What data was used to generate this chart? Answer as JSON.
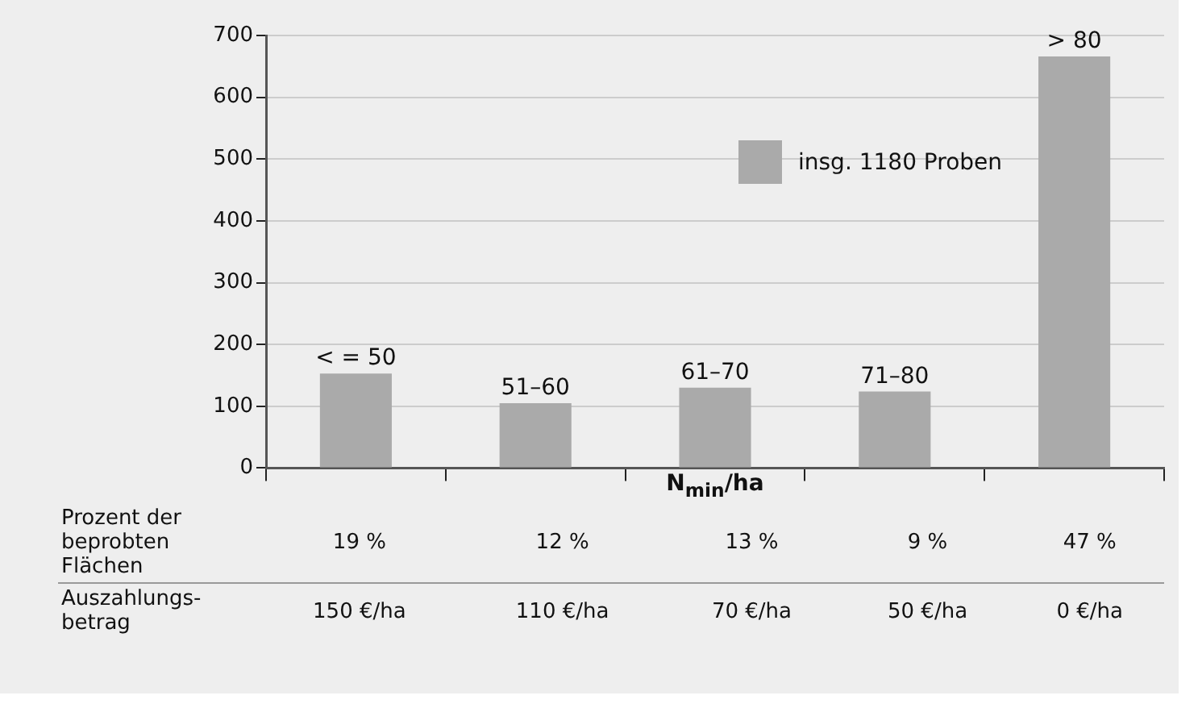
{
  "chart_data": {
    "type": "bar",
    "xlabel": "N$_{min}$/ha",
    "categories": [
      "< = 50",
      "51–60",
      "61–70",
      "71–80",
      "> 80"
    ],
    "series": [
      {
        "name": "insg. 1180 Proben",
        "color": "#aaaaaa",
        "values": [
          153,
          105,
          130,
          124,
          666
        ]
      }
    ],
    "ylim": [
      0,
      700
    ],
    "yticks": [
      0,
      100,
      200,
      300,
      400,
      500,
      600,
      700
    ],
    "grid": "y",
    "legend": "top right",
    "annotations": [
      "Prozent der beprobten Flächen",
      "19 %",
      "12 %",
      "13 %",
      "9 %",
      "47 %",
      "Auszahlungs-betrag",
      "150 €/ha",
      "110 €/ha",
      "70 €/ha",
      "50 €/ha",
      "0 €/ha"
    ]
  }
}
